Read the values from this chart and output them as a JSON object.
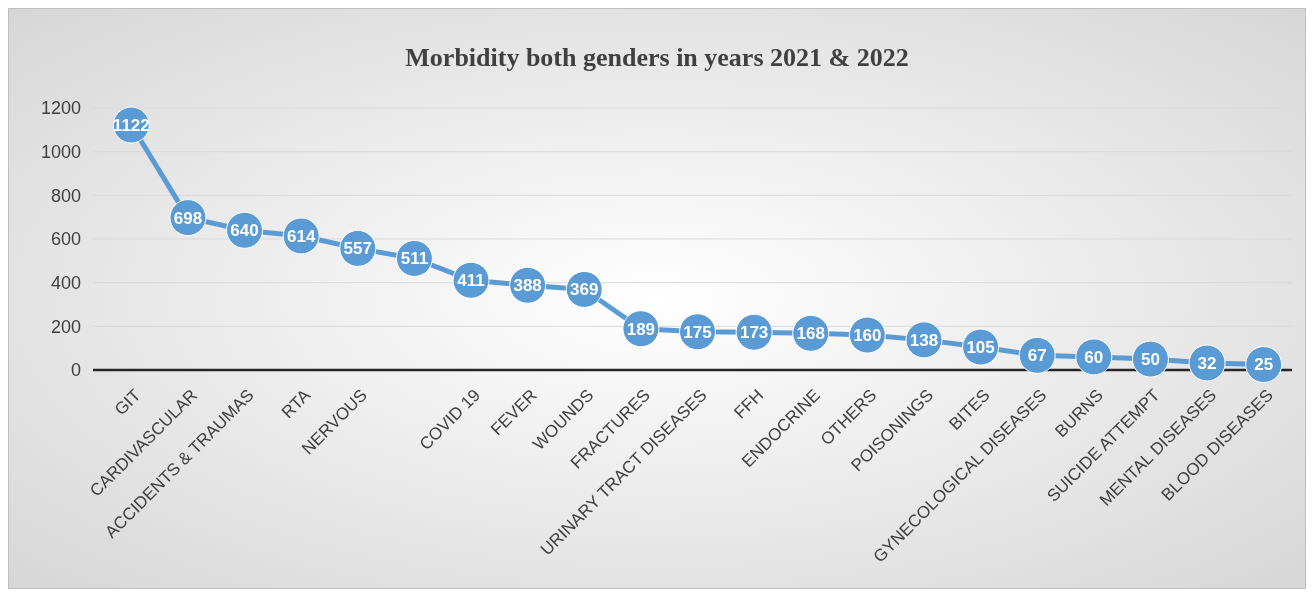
{
  "chart_data": {
    "type": "line",
    "title": "Morbidity both genders in years 2021 & 2022",
    "categories": [
      "GIT",
      "CARDIVASCULAR",
      "ACCIDENTS & TRAUMAS",
      "RTA",
      "NERVOUS",
      null,
      "COVID 19",
      "FEVER",
      "WOUNDS",
      "FRACTURES",
      "URINARY TRACT DISEASES",
      "FFH",
      "ENDOCRINE",
      "OTHERS",
      "POISONINGS",
      "BITES",
      "GYNECOLOGICAL DISEASES",
      "BURNS",
      "SUICIDE ATTEMPT",
      "MENTAL DISEASES",
      "BLOOD DISEASES"
    ],
    "series": [
      {
        "color": "#5b9bd5",
        "values": [
          1122,
          698,
          640,
          614,
          557,
          511,
          411,
          388,
          369,
          189,
          175,
          173,
          168,
          160,
          138,
          105,
          67,
          60,
          50,
          32,
          25
        ]
      }
    ],
    "ylim": [
      0,
      1200
    ],
    "yticks": [
      0,
      200,
      400,
      600,
      800,
      1000,
      1200
    ],
    "grid": "y",
    "data_labels": true,
    "marker": "circle",
    "line_style": "solid"
  }
}
